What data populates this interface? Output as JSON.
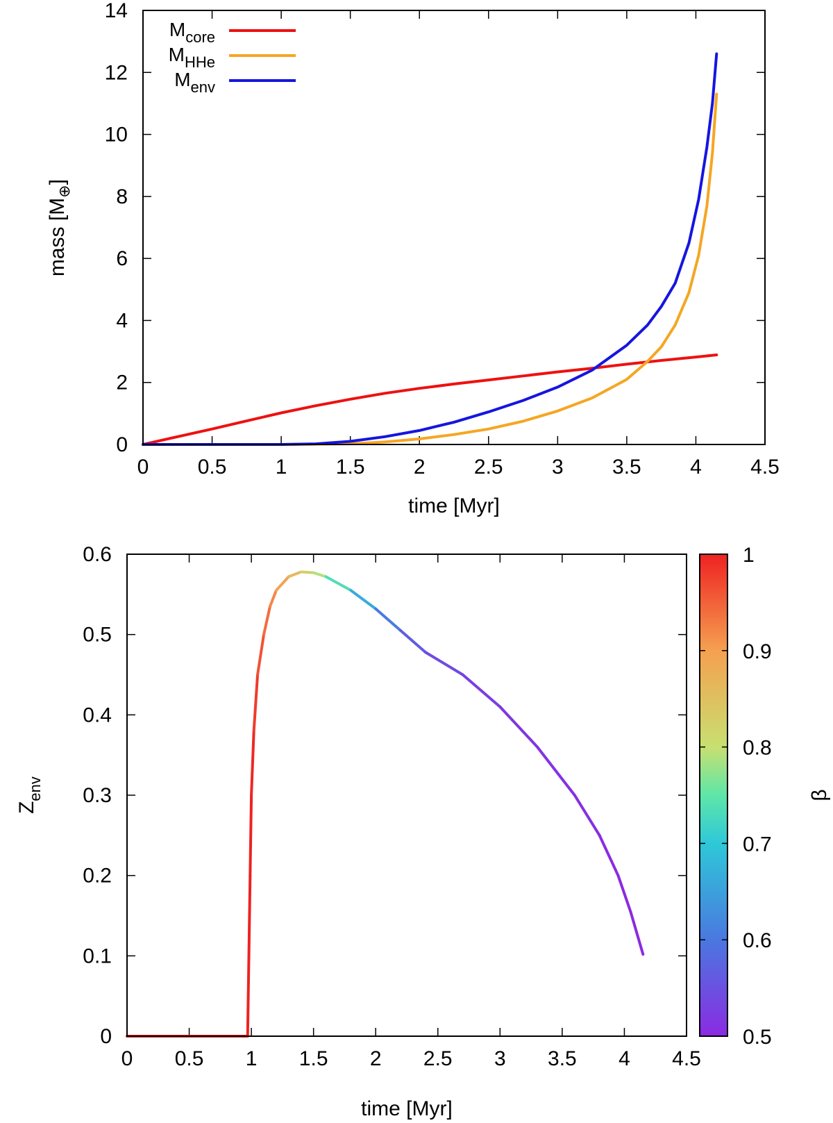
{
  "chart_data": [
    {
      "type": "line",
      "xlabel": "time [Myr]",
      "ylabel": {
        "base": "mass [M",
        "symbol": "⊕",
        "suffix": "]"
      },
      "xlim": [
        0,
        4.5
      ],
      "ylim": [
        0,
        14
      ],
      "xticks": [
        0,
        0.5,
        1,
        1.5,
        2,
        2.5,
        3,
        3.5,
        4,
        4.5
      ],
      "xtick_labels": [
        "0",
        "0.5",
        "1",
        "1.5",
        "2",
        "2.5",
        "3",
        "3.5",
        "4",
        "4.5"
      ],
      "yticks": [
        0,
        2,
        4,
        6,
        8,
        10,
        12,
        14
      ],
      "ytick_labels": [
        "0",
        "2",
        "4",
        "6",
        "8",
        "10",
        "12",
        "14"
      ],
      "legend_position": "top-left",
      "series": [
        {
          "name": "M_core",
          "label_main": "M",
          "label_sub": "core",
          "color": "#ee1111",
          "x": [
            0,
            0.25,
            0.5,
            0.75,
            1.0,
            1.25,
            1.5,
            1.75,
            2.0,
            2.25,
            2.5,
            2.75,
            3.0,
            3.25,
            3.5,
            3.75,
            4.0,
            4.15
          ],
          "y": [
            0,
            0.25,
            0.5,
            0.76,
            1.02,
            1.25,
            1.46,
            1.65,
            1.81,
            1.95,
            2.08,
            2.21,
            2.34,
            2.46,
            2.59,
            2.71,
            2.82,
            2.89
          ]
        },
        {
          "name": "M_HHe",
          "label_main": "M",
          "label_sub": "HHe",
          "color": "#f5a623",
          "x": [
            0,
            1.0,
            1.5,
            1.75,
            2.0,
            2.25,
            2.5,
            2.75,
            3.0,
            3.25,
            3.5,
            3.65,
            3.75,
            3.85,
            3.95,
            4.02,
            4.08,
            4.12,
            4.15
          ],
          "y": [
            0,
            0,
            0.02,
            0.08,
            0.18,
            0.32,
            0.5,
            0.75,
            1.08,
            1.5,
            2.1,
            2.68,
            3.15,
            3.85,
            4.9,
            6.1,
            7.7,
            9.4,
            11.3
          ]
        },
        {
          "name": "M_env",
          "label_main": "M",
          "label_sub": "env",
          "color": "#1515e0",
          "x": [
            0,
            1.0,
            1.25,
            1.5,
            1.75,
            2.0,
            2.25,
            2.5,
            2.75,
            3.0,
            3.25,
            3.5,
            3.65,
            3.75,
            3.85,
            3.95,
            4.02,
            4.08,
            4.12,
            4.15
          ],
          "y": [
            0,
            0,
            0.02,
            0.1,
            0.25,
            0.45,
            0.72,
            1.05,
            1.42,
            1.85,
            2.4,
            3.2,
            3.85,
            4.45,
            5.2,
            6.5,
            7.9,
            9.6,
            11.0,
            12.6
          ]
        }
      ]
    },
    {
      "type": "line",
      "xlabel": "time [Myr]",
      "ylabel": {
        "base": "Z",
        "sub": "env"
      },
      "xlim": [
        0,
        4.5
      ],
      "ylim": [
        0,
        0.6
      ],
      "xticks": [
        0,
        0.5,
        1,
        1.5,
        2,
        2.5,
        3,
        3.5,
        4,
        4.5
      ],
      "xtick_labels": [
        "0",
        "0.5",
        "1",
        "1.5",
        "2",
        "2.5",
        "3",
        "3.5",
        "4",
        "4.5"
      ],
      "yticks": [
        0,
        0.1,
        0.2,
        0.3,
        0.4,
        0.5,
        0.6
      ],
      "ytick_labels": [
        "0",
        "0.1",
        "0.2",
        "0.3",
        "0.4",
        "0.5",
        "0.6"
      ],
      "colorbar": {
        "label": "β",
        "range": [
          0.5,
          1
        ],
        "ticks": [
          0.5,
          0.6,
          0.7,
          0.8,
          0.9,
          1
        ],
        "tick_labels": [
          "0.5",
          "0.6",
          "0.7",
          "0.8",
          "0.9",
          "1"
        ],
        "stops": [
          {
            "value": 0.5,
            "color": "#8a2be2"
          },
          {
            "value": 0.6,
            "color": "#4a78e0"
          },
          {
            "value": 0.7,
            "color": "#2ec8d8"
          },
          {
            "value": 0.75,
            "color": "#5ee6a8"
          },
          {
            "value": 0.8,
            "color": "#c8e070"
          },
          {
            "value": 0.9,
            "color": "#f5a050"
          },
          {
            "value": 1.0,
            "color": "#ee2222"
          }
        ]
      },
      "series": [
        {
          "name": "Z_env",
          "points": [
            {
              "x": 0,
              "y": 0,
              "beta": 1.0
            },
            {
              "x": 0.5,
              "y": 0,
              "beta": 1.0
            },
            {
              "x": 0.97,
              "y": 0,
              "beta": 1.0
            },
            {
              "x": 0.98,
              "y": 0.1,
              "beta": 1.0
            },
            {
              "x": 0.99,
              "y": 0.2,
              "beta": 1.0
            },
            {
              "x": 1.0,
              "y": 0.3,
              "beta": 1.0
            },
            {
              "x": 1.02,
              "y": 0.38,
              "beta": 0.99
            },
            {
              "x": 1.05,
              "y": 0.45,
              "beta": 0.97
            },
            {
              "x": 1.1,
              "y": 0.5,
              "beta": 0.95
            },
            {
              "x": 1.15,
              "y": 0.535,
              "beta": 0.93
            },
            {
              "x": 1.2,
              "y": 0.555,
              "beta": 0.91
            },
            {
              "x": 1.3,
              "y": 0.572,
              "beta": 0.88
            },
            {
              "x": 1.4,
              "y": 0.578,
              "beta": 0.84
            },
            {
              "x": 1.5,
              "y": 0.577,
              "beta": 0.81
            },
            {
              "x": 1.6,
              "y": 0.572,
              "beta": 0.77
            },
            {
              "x": 1.8,
              "y": 0.555,
              "beta": 0.7
            },
            {
              "x": 2.0,
              "y": 0.532,
              "beta": 0.63
            },
            {
              "x": 2.2,
              "y": 0.505,
              "beta": 0.58
            },
            {
              "x": 2.4,
              "y": 0.478,
              "beta": 0.55
            },
            {
              "x": 2.7,
              "y": 0.45,
              "beta": 0.53
            },
            {
              "x": 3.0,
              "y": 0.41,
              "beta": 0.52
            },
            {
              "x": 3.3,
              "y": 0.36,
              "beta": 0.51
            },
            {
              "x": 3.6,
              "y": 0.3,
              "beta": 0.51
            },
            {
              "x": 3.8,
              "y": 0.25,
              "beta": 0.5
            },
            {
              "x": 3.95,
              "y": 0.2,
              "beta": 0.5
            },
            {
              "x": 4.05,
              "y": 0.155,
              "beta": 0.5
            },
            {
              "x": 4.15,
              "y": 0.102,
              "beta": 0.5
            }
          ]
        }
      ]
    }
  ]
}
